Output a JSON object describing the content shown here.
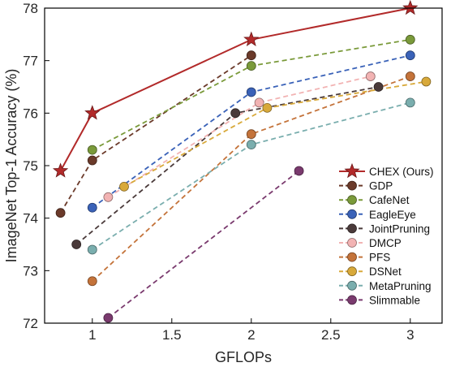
{
  "chart_data": {
    "type": "line",
    "title": "",
    "xlabel": "GFLOPs",
    "ylabel": "ImageNet Top-1 Accuracy (%)",
    "xlim": [
      0.7,
      3.2
    ],
    "ylim": [
      72,
      78
    ],
    "xticks": [
      1,
      1.5,
      2,
      2.5,
      3
    ],
    "xtick_labels": [
      "1",
      "1.5",
      "2",
      "2.5",
      "3"
    ],
    "yticks": [
      72,
      73,
      74,
      75,
      76,
      77,
      78
    ],
    "ytick_labels": [
      "72",
      "73",
      "74",
      "75",
      "76",
      "77",
      "78"
    ],
    "grid": false,
    "legend_position": "lower-right",
    "series": [
      {
        "name": "CHEX (Ours)",
        "color": "#b22a2a",
        "marker": "star",
        "linestyle": "solid",
        "x": [
          0.8,
          1.0,
          2.0,
          3.0
        ],
        "y": [
          74.9,
          76.0,
          77.4,
          78.0
        ]
      },
      {
        "name": "GDP",
        "color": "#6b3a2a",
        "marker": "circle",
        "linestyle": "dashed",
        "x": [
          0.8,
          1.0,
          2.0
        ],
        "y": [
          74.1,
          75.1,
          77.1
        ]
      },
      {
        "name": "CafeNet",
        "color": "#7a9a3a",
        "marker": "circle",
        "linestyle": "dashed",
        "x": [
          1.0,
          2.0,
          3.0
        ],
        "y": [
          75.3,
          76.9,
          77.4
        ]
      },
      {
        "name": "EagleEye",
        "color": "#3a62b8",
        "marker": "circle",
        "linestyle": "dashed",
        "x": [
          1.0,
          2.0,
          3.0
        ],
        "y": [
          74.2,
          76.4,
          77.1
        ]
      },
      {
        "name": "JointPruning",
        "color": "#4a3a3a",
        "marker": "circle",
        "linestyle": "dashed",
        "x": [
          0.9,
          1.9,
          2.8
        ],
        "y": [
          73.5,
          76.0,
          76.5
        ]
      },
      {
        "name": "DMCP",
        "color": "#f2b3b3",
        "marker": "circle",
        "linestyle": "dashed",
        "x": [
          1.1,
          2.05,
          2.75
        ],
        "y": [
          74.4,
          76.2,
          76.7
        ]
      },
      {
        "name": "PFS",
        "color": "#c4733a",
        "marker": "circle",
        "linestyle": "dashed",
        "x": [
          1.0,
          2.0,
          3.0
        ],
        "y": [
          72.8,
          75.6,
          76.7
        ]
      },
      {
        "name": "DSNet",
        "color": "#d8a93a",
        "marker": "circle",
        "linestyle": "dashed",
        "x": [
          1.2,
          2.1,
          3.1
        ],
        "y": [
          74.6,
          76.1,
          76.6
        ]
      },
      {
        "name": "MetaPruning",
        "color": "#7aaeae",
        "marker": "circle",
        "linestyle": "dashed",
        "x": [
          1.0,
          2.0,
          3.0
        ],
        "y": [
          73.4,
          75.4,
          76.2
        ]
      },
      {
        "name": "Slimmable",
        "color": "#7a3a6e",
        "marker": "circle",
        "linestyle": "dashed",
        "x": [
          1.1,
          2.3
        ],
        "y": [
          72.1,
          74.9
        ]
      }
    ]
  }
}
